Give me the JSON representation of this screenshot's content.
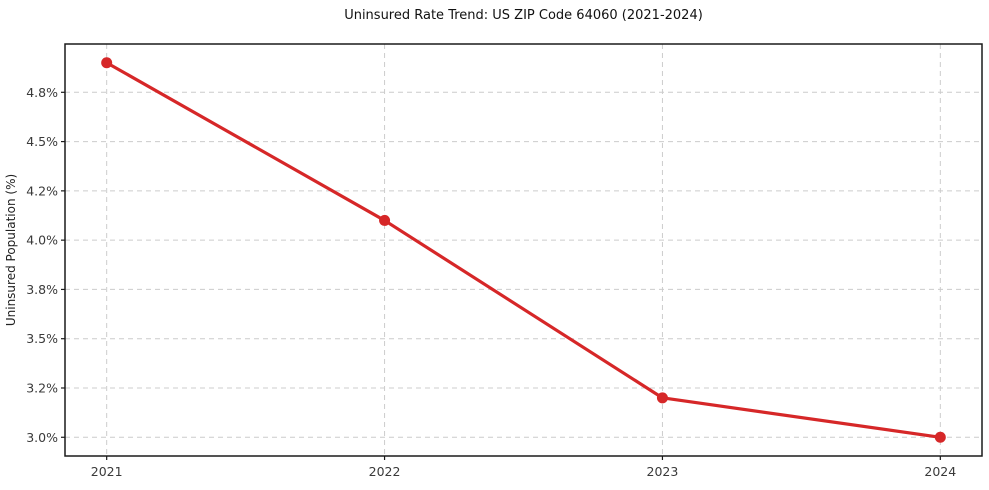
{
  "chart_data": {
    "type": "line",
    "title": "Uninsured Rate Trend: US ZIP Code 64060 (2021-2024)",
    "xlabel": "",
    "ylabel": "Uninsured Population (%)",
    "x": [
      2021,
      2022,
      2023,
      2024
    ],
    "values": [
      4.9,
      4.1,
      3.2,
      3.0
    ],
    "series": [
      {
        "name": "Uninsured Population (%)",
        "values": [
          4.9,
          4.1,
          3.2,
          3.0
        ]
      }
    ],
    "xlim": [
      2020.85,
      2024.15
    ],
    "ylim": [
      2.905,
      4.995
    ],
    "xticks": [
      {
        "value": 2021,
        "label": "2021"
      },
      {
        "value": 2022,
        "label": "2022"
      },
      {
        "value": 2023,
        "label": "2023"
      },
      {
        "value": 2024,
        "label": "2024"
      }
    ],
    "yticks": [
      {
        "value": 3.0,
        "label": "3.0%"
      },
      {
        "value": 3.25,
        "label": "3.2%"
      },
      {
        "value": 3.5,
        "label": "3.5%"
      },
      {
        "value": 3.75,
        "label": "3.8%"
      },
      {
        "value": 4.0,
        "label": "4.0%"
      },
      {
        "value": 4.25,
        "label": "4.2%"
      },
      {
        "value": 4.5,
        "label": "4.5%"
      },
      {
        "value": 4.75,
        "label": "4.8%"
      }
    ],
    "grid": true,
    "grid_style": "dashed",
    "legend": false,
    "marker": "circle",
    "colors": {
      "line": "#d62728",
      "grid": "#cccccc",
      "spine": "#1a1a1a",
      "tick_label": "#3a3a3a",
      "background": "#ffffff"
    }
  }
}
